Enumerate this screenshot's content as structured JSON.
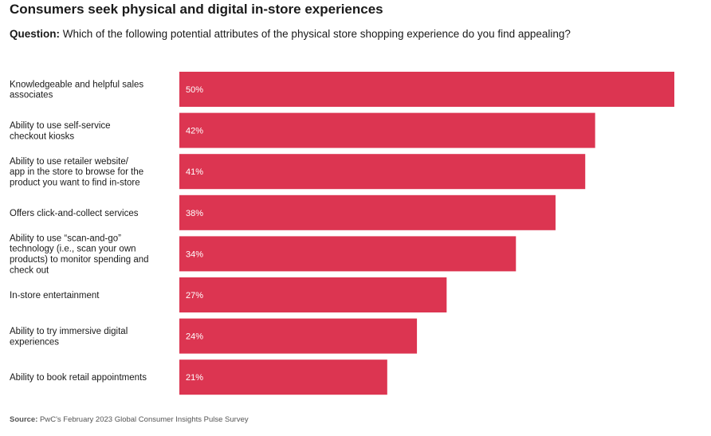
{
  "header": {
    "title": "Consumers seek physical and digital in-store experiences",
    "question_label": "Question:",
    "question_text": "Which of the following potential attributes of the physical store shopping experience do you find appealing?"
  },
  "footer": {
    "source_label": "Source:",
    "source_text": "PwC's February 2023 Global Consumer Insights Pulse Survey"
  },
  "colors": {
    "bar": "#dc3551",
    "bar_label": "#ffffff"
  },
  "chart_data": {
    "type": "bar",
    "orientation": "horizontal",
    "categories": [
      [
        "Knowledgeable and helpful sales",
        "associates"
      ],
      [
        "Ability to use self-service",
        "checkout kiosks"
      ],
      [
        "Ability to use retailer website/",
        "app in the store to browse for the",
        "product you want to find in-store"
      ],
      [
        "Offers click-and-collect services"
      ],
      [
        "Ability to use “scan-and-go”",
        "technology (i.e., scan your own",
        "products) to monitor spending and",
        "check out"
      ],
      [
        "In-store entertainment"
      ],
      [
        "Ability to try immersive digital",
        "experiences"
      ],
      [
        "Ability to book retail appointments"
      ]
    ],
    "values": [
      50,
      42,
      41,
      38,
      34,
      27,
      24,
      21
    ],
    "value_labels": [
      "50%",
      "42%",
      "41%",
      "38%",
      "34%",
      "27%",
      "24%",
      "21%"
    ],
    "unit": "%",
    "xlim": [
      0,
      50
    ],
    "grid": false,
    "legend": "none"
  }
}
